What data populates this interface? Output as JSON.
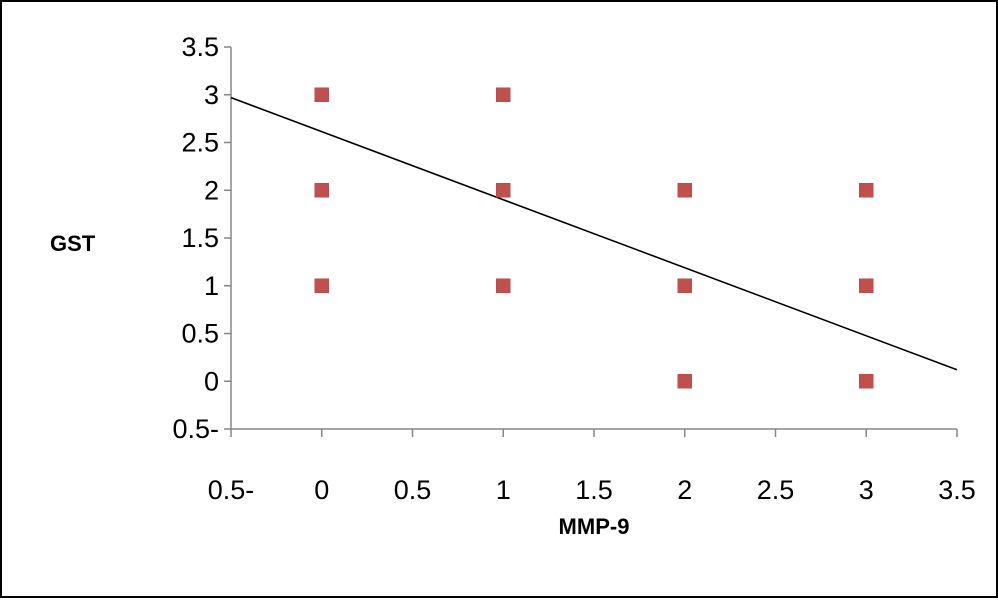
{
  "chart_data": {
    "type": "scatter",
    "title": "",
    "xlabel": "MMP-9",
    "ylabel": "GST",
    "xlim": [
      -0.5,
      3.5
    ],
    "ylim": [
      -0.5,
      3.5
    ],
    "x_ticks": [
      -0.5,
      0,
      0.5,
      1,
      1.5,
      2,
      2.5,
      3,
      3.5
    ],
    "y_ticks": [
      -0.5,
      0,
      0.5,
      1,
      1.5,
      2,
      2.5,
      3,
      3.5
    ],
    "x_tick_labels": [
      "0.5-",
      "0",
      "0.5",
      "1",
      "1.5",
      "2",
      "2.5",
      "3",
      "3.5"
    ],
    "y_tick_labels": [
      "0.5-",
      "0",
      "0.5",
      "1",
      "1.5",
      "2",
      "2.5",
      "3",
      "3.5"
    ],
    "grid": false,
    "legend": "none",
    "series": [
      {
        "marker": "square",
        "color": "#c0504d",
        "points": [
          {
            "x": 0,
            "y": 3
          },
          {
            "x": 0,
            "y": 2
          },
          {
            "x": 0,
            "y": 1
          },
          {
            "x": 1,
            "y": 3
          },
          {
            "x": 1,
            "y": 2
          },
          {
            "x": 1,
            "y": 1
          },
          {
            "x": 2,
            "y": 2
          },
          {
            "x": 2,
            "y": 1
          },
          {
            "x": 2,
            "y": 0
          },
          {
            "x": 3,
            "y": 2
          },
          {
            "x": 3,
            "y": 1
          },
          {
            "x": 3,
            "y": 0
          }
        ]
      }
    ],
    "trendline": {
      "type": "linear",
      "color": "#000000",
      "from": {
        "x": -0.5,
        "y": 2.97
      },
      "to": {
        "x": 3.5,
        "y": 0.12
      }
    }
  }
}
